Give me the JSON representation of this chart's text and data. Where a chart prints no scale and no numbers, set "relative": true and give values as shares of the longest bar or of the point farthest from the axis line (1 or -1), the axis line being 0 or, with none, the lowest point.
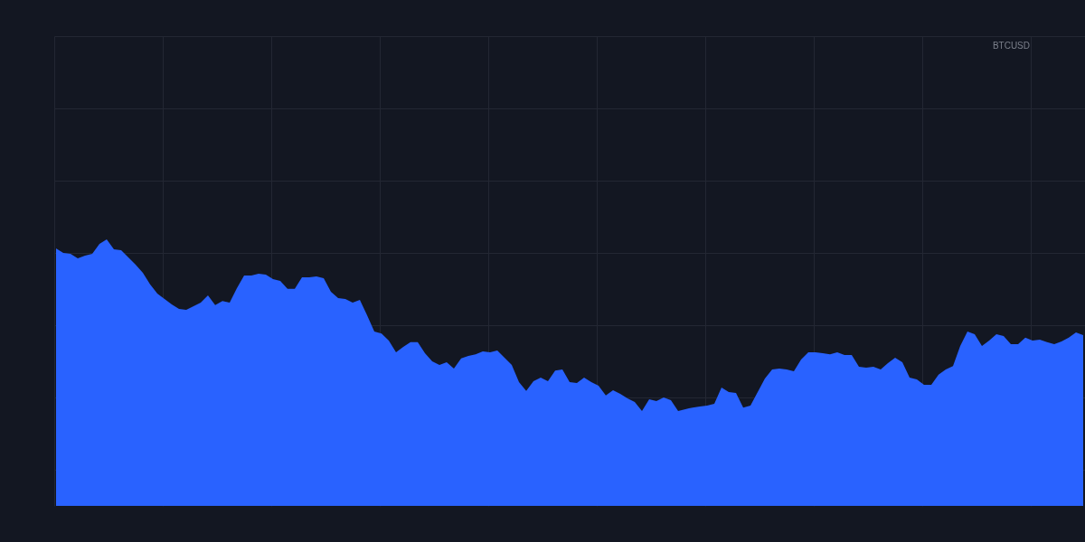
{
  "chart_data": {
    "type": "area",
    "relative": true,
    "grid": true,
    "annotations": [
      "BTCUSD"
    ],
    "categories": [
      null,
      null,
      null,
      null,
      null,
      null,
      null,
      null,
      null,
      null,
      null,
      null,
      null,
      null,
      null,
      null,
      null,
      null,
      null,
      null,
      null,
      null,
      null,
      null,
      null,
      null,
      null,
      null,
      null,
      null,
      null,
      null,
      null,
      null,
      null,
      null,
      null,
      null,
      null,
      null,
      null,
      null,
      null,
      null,
      null,
      null,
      null,
      null,
      null,
      null,
      null,
      null,
      null,
      null,
      null,
      null,
      null,
      null,
      null,
      null,
      null,
      null,
      null,
      null,
      null,
      null,
      null,
      null,
      null,
      null,
      null,
      null,
      null,
      null,
      null,
      null,
      null,
      null,
      null,
      null,
      null,
      null,
      null,
      null,
      null,
      null,
      null,
      null,
      null,
      null,
      null,
      null,
      null,
      null,
      null,
      null,
      null,
      null,
      null,
      null,
      null,
      null,
      null,
      null,
      null,
      null,
      null,
      null,
      null,
      null,
      null,
      null,
      null,
      null,
      null,
      null,
      null,
      null,
      null,
      null,
      null,
      null,
      null,
      null,
      null,
      null,
      null,
      null,
      null,
      null,
      null,
      null,
      null,
      null,
      null,
      null,
      null,
      null,
      null,
      null,
      null,
      null,
      null
    ],
    "series": [
      {
        "color": "#2962ff",
        "values": [
          0.966,
          0.949,
          0.946,
          0.929,
          0.939,
          0.946,
          0.983,
          1,
          0.963,
          0.959,
          0.932,
          0.905,
          0.875,
          0.831,
          0.797,
          0.776,
          0.756,
          0.739,
          0.736,
          0.749,
          0.763,
          0.79,
          0.753,
          0.769,
          0.763,
          0.817,
          0.864,
          0.864,
          0.871,
          0.868,
          0.851,
          0.844,
          0.814,
          0.814,
          0.858,
          0.858,
          0.861,
          0.854,
          0.803,
          0.78,
          0.776,
          0.763,
          0.773,
          0.715,
          0.654,
          0.647,
          0.62,
          0.576,
          0.597,
          0.614,
          0.614,
          0.573,
          0.542,
          0.529,
          0.539,
          0.515,
          0.553,
          0.563,
          0.569,
          0.58,
          0.576,
          0.583,
          0.556,
          0.529,
          0.464,
          0.431,
          0.468,
          0.481,
          0.468,
          0.508,
          0.512,
          0.464,
          0.461,
          0.481,
          0.464,
          0.451,
          0.414,
          0.434,
          0.42,
          0.403,
          0.39,
          0.356,
          0.4,
          0.393,
          0.407,
          0.397,
          0.356,
          0.363,
          0.369,
          0.373,
          0.376,
          0.383,
          0.444,
          0.427,
          0.424,
          0.369,
          0.376,
          0.427,
          0.478,
          0.512,
          0.515,
          0.512,
          0.505,
          0.549,
          0.576,
          0.576,
          0.573,
          0.569,
          0.576,
          0.566,
          0.566,
          0.522,
          0.519,
          0.522,
          0.512,
          0.536,
          0.556,
          0.539,
          0.481,
          0.475,
          0.454,
          0.454,
          0.492,
          0.512,
          0.525,
          0.6,
          0.654,
          0.644,
          0.6,
          0.62,
          0.644,
          0.637,
          0.607,
          0.607,
          0.631,
          0.62,
          0.624,
          0.614,
          0.607,
          0.617,
          0.631,
          0.651,
          0.641
        ]
      }
    ]
  }
}
